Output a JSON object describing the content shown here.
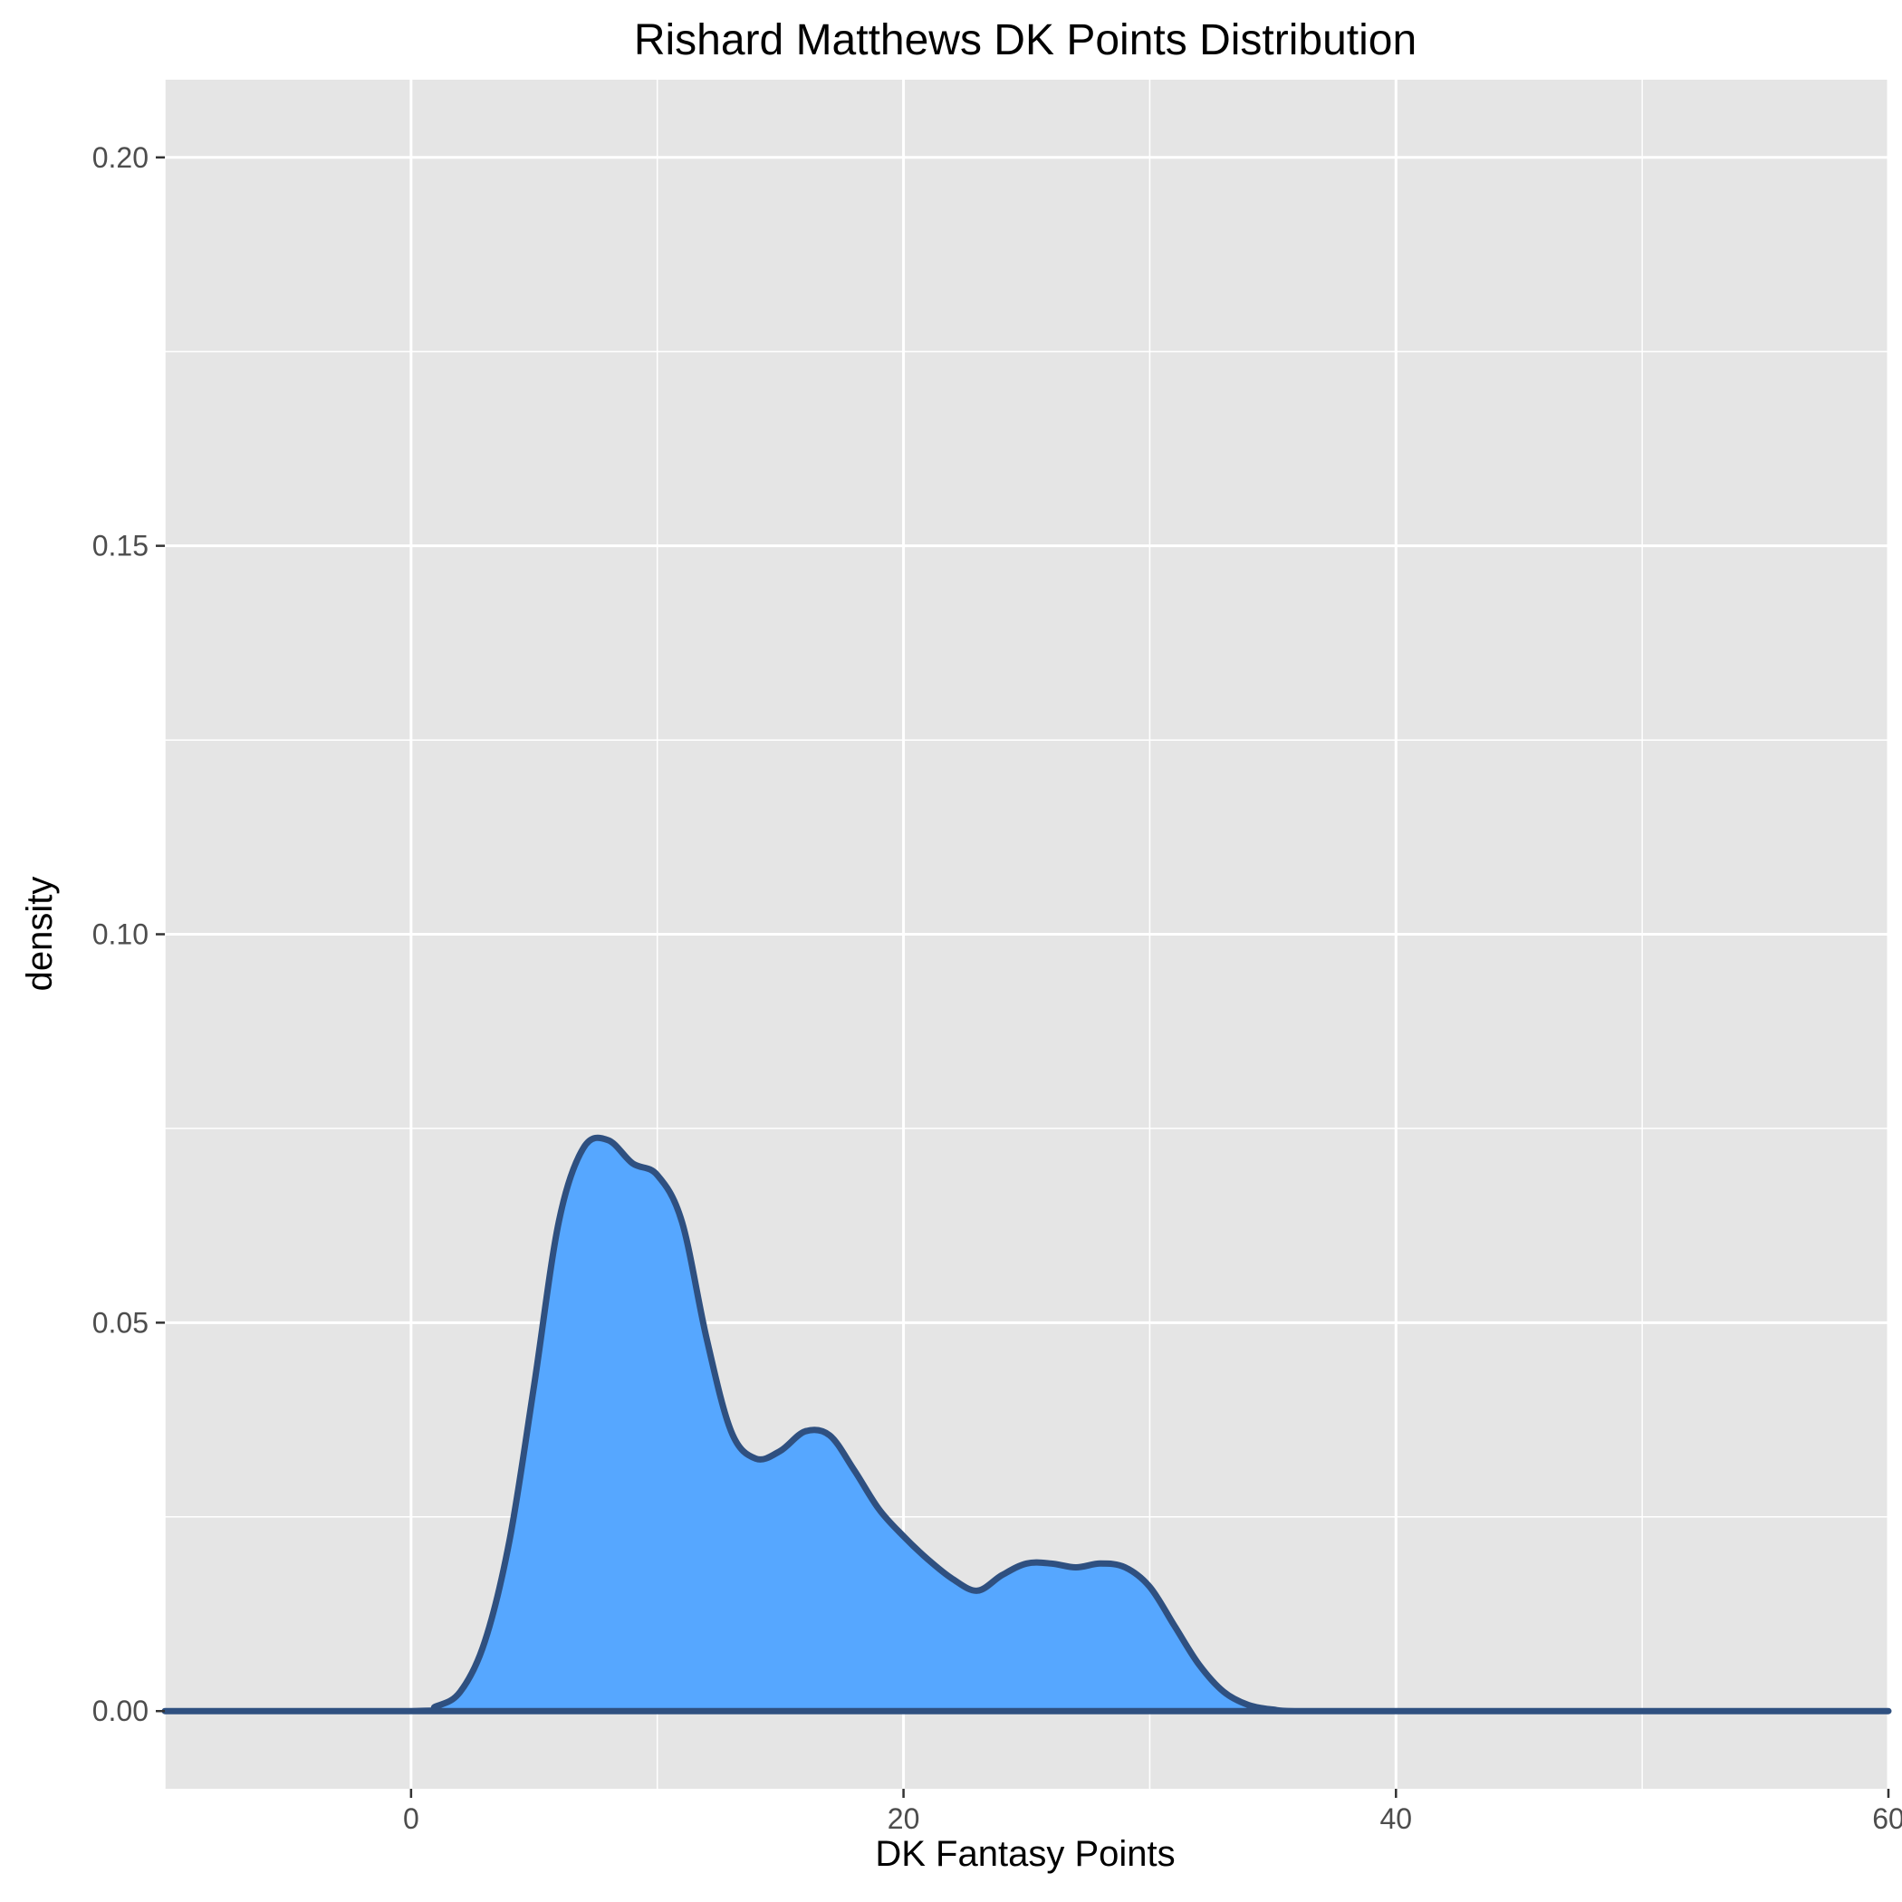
{
  "chart_data": {
    "type": "area",
    "title": "Rishard Matthews DK Points Distribution",
    "xlabel": "DK Fantasy Points",
    "ylabel": "density",
    "xlim": [
      -10,
      60
    ],
    "ylim": [
      -0.01,
      0.21
    ],
    "x_ticks": [
      0,
      20,
      40,
      60
    ],
    "x_tick_labels": [
      "0",
      "20",
      "40",
      "60"
    ],
    "y_ticks": [
      0.0,
      0.05,
      0.1,
      0.15,
      0.2
    ],
    "y_tick_labels": [
      "0.00",
      "0.05",
      "0.10",
      "0.15",
      "0.20"
    ],
    "grid": true,
    "panel_background": "#e5e5e5",
    "fill_color": "#56a7ff",
    "line_color": "#2f5080",
    "series": [
      {
        "x": [
          -10,
          0,
          1,
          2,
          3,
          4,
          5,
          6,
          7,
          8,
          9,
          10,
          11,
          12,
          13,
          14,
          15,
          16,
          17,
          18,
          19,
          20,
          21,
          22,
          23,
          24,
          25,
          26,
          27,
          28,
          29,
          30,
          31,
          32,
          33,
          34,
          35,
          36,
          40,
          60
        ],
        "y": [
          0.0,
          0.0,
          0.0006,
          0.0025,
          0.009,
          0.022,
          0.042,
          0.063,
          0.0725,
          0.0735,
          0.0705,
          0.069,
          0.063,
          0.048,
          0.036,
          0.0325,
          0.0335,
          0.036,
          0.0355,
          0.031,
          0.026,
          0.0225,
          0.0195,
          0.017,
          0.0155,
          0.0175,
          0.019,
          0.019,
          0.0185,
          0.019,
          0.0185,
          0.016,
          0.011,
          0.006,
          0.0025,
          0.0008,
          0.0002,
          0.0,
          0.0,
          0.0
        ]
      }
    ]
  }
}
